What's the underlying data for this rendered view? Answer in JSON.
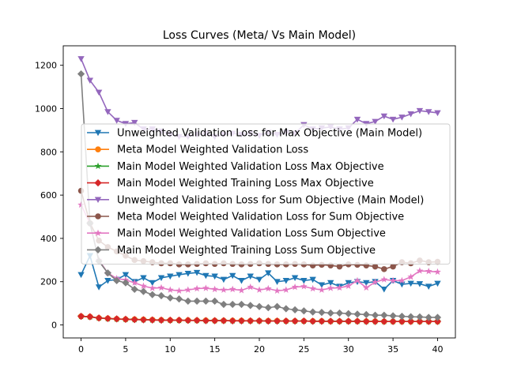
{
  "chart_data": {
    "type": "line",
    "title": "Loss Curves (Meta/ Vs Main Model)",
    "xlabel": "",
    "ylabel": "",
    "xlim": [
      -2,
      42
    ],
    "ylim": [
      -60,
      1290
    ],
    "xticks": [
      0,
      5,
      10,
      15,
      20,
      25,
      30,
      35,
      40
    ],
    "yticks": [
      0,
      200,
      400,
      600,
      800,
      1000,
      1200
    ],
    "grid": false,
    "legend_position": "center",
    "x": [
      0,
      1,
      2,
      3,
      4,
      5,
      6,
      7,
      8,
      9,
      10,
      11,
      12,
      13,
      14,
      15,
      16,
      17,
      18,
      19,
      20,
      21,
      22,
      23,
      24,
      25,
      26,
      27,
      28,
      29,
      30,
      31,
      32,
      33,
      34,
      35,
      36,
      37,
      38,
      39,
      40
    ],
    "series": [
      {
        "name": "Unweighted Validation Loss for Max Objective (Main Model)",
        "color": "#1f77b4",
        "marker": "triangle-down",
        "values": [
          232,
          320,
          175,
          205,
          210,
          232,
          200,
          218,
          195,
          218,
          225,
          232,
          238,
          242,
          228,
          225,
          210,
          228,
          205,
          225,
          210,
          240,
          200,
          205,
          218,
          205,
          210,
          185,
          195,
          178,
          195,
          200,
          195,
          200,
          165,
          205,
          188,
          192,
          190,
          178,
          192
        ]
      },
      {
        "name": "Meta Model Weighted Validation Loss",
        "color": "#ff7f0e",
        "marker": "circle",
        "values": [
          40,
          38,
          32,
          30,
          28,
          26,
          26,
          25,
          24,
          23,
          22,
          22,
          22,
          21,
          21,
          20,
          20,
          20,
          20,
          19,
          19,
          19,
          19,
          18,
          18,
          18,
          18,
          18,
          17,
          17,
          17,
          17,
          17,
          17,
          16,
          16,
          16,
          16,
          16,
          16,
          16
        ]
      },
      {
        "name": "Main Model Weighted Validation Loss Max Objective",
        "color": "#2ca02c",
        "marker": "star",
        "values": [
          40,
          37,
          32,
          29,
          27,
          26,
          25,
          24,
          23,
          22,
          22,
          21,
          21,
          21,
          20,
          20,
          20,
          19,
          19,
          19,
          19,
          18,
          18,
          18,
          18,
          18,
          17,
          17,
          17,
          17,
          17,
          17,
          16,
          16,
          16,
          16,
          16,
          16,
          16,
          16,
          16
        ]
      },
      {
        "name": "Main Model Weighted Training Loss Max Objective",
        "color": "#d62728",
        "marker": "diamond",
        "values": [
          40,
          38,
          32,
          30,
          28,
          26,
          25,
          24,
          23,
          22,
          22,
          22,
          21,
          21,
          20,
          20,
          20,
          19,
          19,
          19,
          19,
          18,
          18,
          18,
          18,
          18,
          17,
          17,
          17,
          17,
          17,
          17,
          16,
          16,
          16,
          16,
          16,
          16,
          16,
          16,
          16
        ]
      },
      {
        "name": "Unweighted Validation Loss for Sum Objective (Main Model)",
        "color": "#9467bd",
        "marker": "triangle-down",
        "values": [
          1230,
          1130,
          1075,
          985,
          945,
          930,
          935,
          905,
          905,
          895,
          880,
          870,
          870,
          880,
          885,
          870,
          880,
          885,
          880,
          885,
          875,
          890,
          880,
          890,
          885,
          925,
          905,
          910,
          915,
          905,
          910,
          950,
          930,
          940,
          965,
          950,
          960,
          975,
          990,
          985,
          980
        ]
      },
      {
        "name": "Meta Model Weighted Validation Loss for Sum Objective",
        "color": "#8c564b",
        "marker": "circle",
        "values": [
          620,
          470,
          390,
          360,
          340,
          320,
          300,
          295,
          290,
          285,
          285,
          280,
          280,
          282,
          285,
          282,
          285,
          282,
          280,
          282,
          285,
          282,
          280,
          280,
          282,
          280,
          275,
          278,
          275,
          270,
          280,
          278,
          275,
          270,
          258,
          270,
          290,
          285,
          298,
          290,
          292
        ]
      },
      {
        "name": "Main Model Weighted Validation Loss Sum Objective",
        "color": "#e377c2",
        "marker": "star",
        "values": [
          555,
          470,
          300,
          240,
          215,
          208,
          195,
          180,
          170,
          172,
          162,
          158,
          162,
          168,
          170,
          165,
          162,
          165,
          160,
          175,
          162,
          168,
          158,
          162,
          175,
          178,
          168,
          162,
          170,
          172,
          180,
          205,
          172,
          198,
          210,
          205,
          205,
          222,
          250,
          248,
          245
        ]
      },
      {
        "name": "Main Model Weighted Training Loss Sum Objective",
        "color": "#7f7f7f",
        "marker": "diamond",
        "values": [
          1160,
          470,
          295,
          240,
          205,
          195,
          165,
          155,
          140,
          135,
          125,
          120,
          110,
          110,
          110,
          110,
          95,
          95,
          95,
          90,
          85,
          80,
          85,
          75,
          70,
          65,
          60,
          58,
          55,
          55,
          52,
          50,
          48,
          45,
          45,
          42,
          40,
          38,
          37,
          35,
          35
        ]
      }
    ]
  }
}
